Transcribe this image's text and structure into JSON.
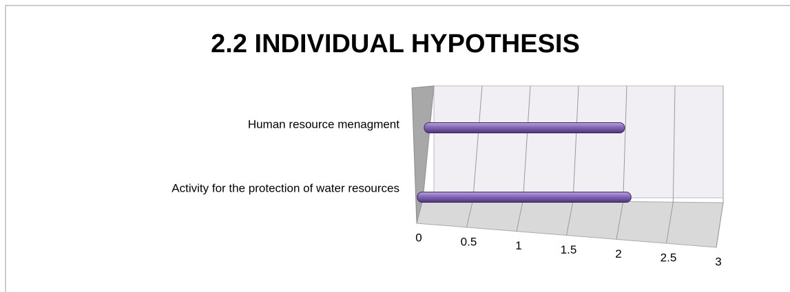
{
  "chart_data": {
    "type": "bar3d",
    "title": "2.2 INDIVIDUAL HYPOTHESIS",
    "categories": [
      "Human resource menagment",
      "Activity for the protection of water resources"
    ],
    "values": [
      2.0,
      2.1
    ],
    "color": "#7f62b3",
    "xlim": [
      0,
      3
    ],
    "xticks": [
      0,
      0.5,
      1,
      1.5,
      2,
      2.5,
      3
    ],
    "grid": true
  }
}
